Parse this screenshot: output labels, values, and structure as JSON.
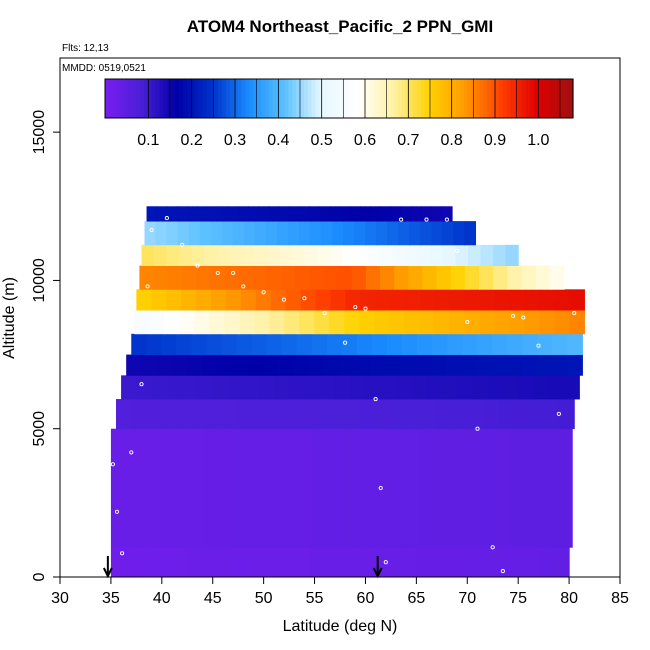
{
  "chart_data": {
    "type": "heatmap",
    "title": "ATOM4 Northeast_Pacific_2 PPN_GMI",
    "subtitle_flights": "Flts: 12,13",
    "subtitle_dates": "MMDD: 0519,0521",
    "xlabel": "Latitude (deg N)",
    "ylabel": "Altitude (m)",
    "xlim": [
      30,
      85
    ],
    "ylim": [
      0,
      17500
    ],
    "x_ticks": [
      30,
      35,
      40,
      45,
      50,
      55,
      60,
      65,
      70,
      75,
      80,
      85
    ],
    "y_ticks": [
      0,
      5000,
      10000,
      15000
    ],
    "colorbar": {
      "range": [
        0,
        1.08
      ],
      "tick_labels": [
        "0.1",
        "0.2",
        "0.3",
        "0.4",
        "0.5",
        "0.6",
        "0.7",
        "0.8",
        "0.9",
        "1.0"
      ],
      "tick_values": [
        0.1,
        0.2,
        0.3,
        0.4,
        0.5,
        0.6,
        0.7,
        0.8,
        0.9,
        1.0
      ],
      "colors": [
        "#7a1df0",
        "#4a1fd8",
        "#0000a8",
        "#0033cc",
        "#1a8cff",
        "#5cc1ff",
        "#e6f7ff",
        "#ffffff",
        "#fff2a8",
        "#ffd200",
        "#ff9a00",
        "#ff4000",
        "#e00000",
        "#a01010"
      ]
    },
    "arrows_at_latitude": [
      34.7,
      61.2
    ],
    "layers": [
      {
        "alt_min": 0,
        "alt_max": 1000,
        "lat_min": 35,
        "lat_max": 80,
        "values": [
          0.02,
          0.03,
          0.04
        ]
      },
      {
        "alt_min": 1000,
        "alt_max": 5000,
        "lat_min": 35,
        "lat_max": 80.3,
        "values": [
          0.03,
          0.04,
          0.05
        ]
      },
      {
        "alt_min": 5000,
        "alt_max": 6000,
        "lat_min": 35.5,
        "lat_max": 80.5,
        "values": [
          0.07,
          0.08,
          0.09
        ]
      },
      {
        "alt_min": 6000,
        "alt_max": 6800,
        "lat_min": 36,
        "lat_max": 81,
        "values": [
          0.1,
          0.12,
          0.14
        ]
      },
      {
        "alt_min": 6800,
        "alt_max": 7500,
        "lat_min": 36.5,
        "lat_max": 81.3,
        "values": [
          0.15,
          0.18,
          0.2
        ]
      },
      {
        "alt_min": 7500,
        "alt_max": 8200,
        "lat_min": 37,
        "lat_max": 81.3,
        "values": [
          0.25,
          0.32,
          0.4
        ]
      },
      {
        "alt_min": 8200,
        "alt_max": 9000,
        "lat_min": 37.3,
        "lat_max": 81.5,
        "values": [
          0.55,
          0.75,
          0.85
        ]
      },
      {
        "alt_min": 9000,
        "alt_max": 9700,
        "lat_min": 37.5,
        "lat_max": 81.5,
        "values": [
          0.75,
          0.95,
          0.98
        ]
      },
      {
        "alt_min": 9700,
        "alt_max": 10500,
        "lat_min": 37.8,
        "lat_max": 79.5,
        "values": [
          0.85,
          0.9,
          0.6
        ]
      },
      {
        "alt_min": 10500,
        "alt_max": 11200,
        "lat_min": 38,
        "lat_max": 75,
        "values": [
          0.7,
          0.6,
          0.45
        ]
      },
      {
        "alt_min": 11200,
        "alt_max": 12000,
        "lat_min": 38.3,
        "lat_max": 70.8,
        "values": [
          0.45,
          0.35,
          0.25
        ]
      },
      {
        "alt_min": 12000,
        "alt_max": 12500,
        "lat_min": 38.5,
        "lat_max": 68.5,
        "values": [
          0.2,
          0.18,
          0.15
        ]
      }
    ],
    "flight_track": [
      [
        34.8,
        5000
      ],
      [
        35.2,
        3800
      ],
      [
        35.6,
        2200
      ],
      [
        36.1,
        800
      ],
      [
        37.0,
        4200
      ],
      [
        38.0,
        6500
      ],
      [
        38.6,
        9800
      ],
      [
        39.0,
        11700
      ],
      [
        40.5,
        12100
      ],
      [
        42.0,
        11200
      ],
      [
        43.5,
        10500
      ],
      [
        45.5,
        10250
      ],
      [
        47.0,
        10250
      ],
      [
        48.0,
        9800
      ],
      [
        50.0,
        9600
      ],
      [
        52.0,
        9350
      ],
      [
        54.0,
        9400
      ],
      [
        56.0,
        8900
      ],
      [
        58.0,
        7900
      ],
      [
        59.0,
        9100
      ],
      [
        60.0,
        9050
      ],
      [
        61.0,
        6000
      ],
      [
        61.5,
        3000
      ],
      [
        62.0,
        500
      ],
      [
        63.5,
        12050
      ],
      [
        66.0,
        12050
      ],
      [
        68.0,
        12050
      ],
      [
        69.0,
        11000
      ],
      [
        70.0,
        8600
      ],
      [
        71.0,
        5000
      ],
      [
        72.5,
        1000
      ],
      [
        73.5,
        200
      ],
      [
        74.5,
        8800
      ],
      [
        75.5,
        8750
      ],
      [
        77.0,
        7800
      ],
      [
        79.0,
        5500
      ],
      [
        80.5,
        8900
      ]
    ]
  }
}
